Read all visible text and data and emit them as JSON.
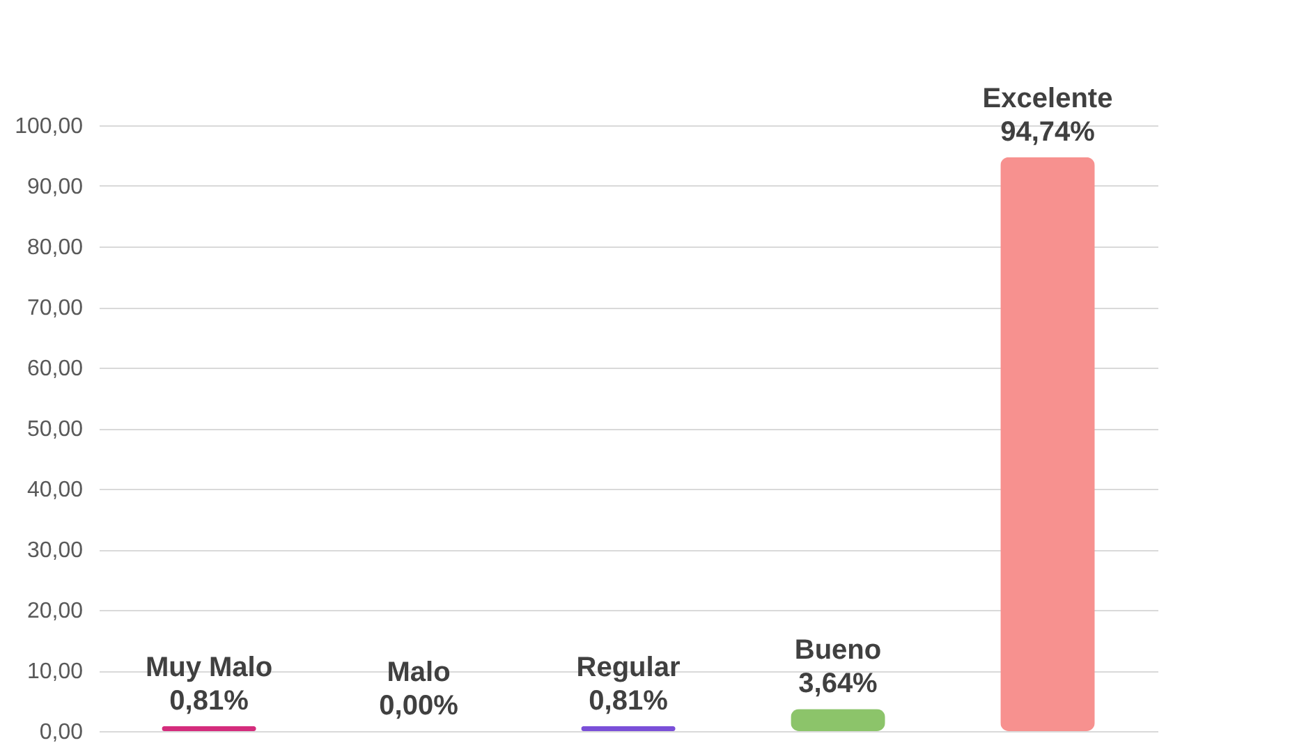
{
  "chart_data": {
    "type": "bar",
    "categories": [
      "Muy Malo",
      "Malo",
      "Regular",
      "Bueno",
      "Excelente"
    ],
    "values": [
      0.81,
      0.0,
      0.81,
      3.64,
      94.74
    ],
    "colors": [
      "#d42c7c",
      "#3f78b0",
      "#7a4fd8",
      "#8cc46a",
      "#f7918f"
    ],
    "value_labels": [
      "0,81%",
      "0,00%",
      "0,81%",
      "3,64%",
      "94,74%"
    ],
    "ylim": [
      0,
      100
    ],
    "yticks": [
      {
        "value": 0,
        "label": "0,00"
      },
      {
        "value": 10,
        "label": "10,00"
      },
      {
        "value": 20,
        "label": "20,00"
      },
      {
        "value": 30,
        "label": "30,00"
      },
      {
        "value": 40,
        "label": "40,00"
      },
      {
        "value": 50,
        "label": "50,00"
      },
      {
        "value": 60,
        "label": "60,00"
      },
      {
        "value": 70,
        "label": "70,00"
      },
      {
        "value": 80,
        "label": "80,00"
      },
      {
        "value": 90,
        "label": "90,00"
      },
      {
        "value": 100,
        "label": "100,00"
      }
    ],
    "grid": "y",
    "tick_labels": "y"
  }
}
